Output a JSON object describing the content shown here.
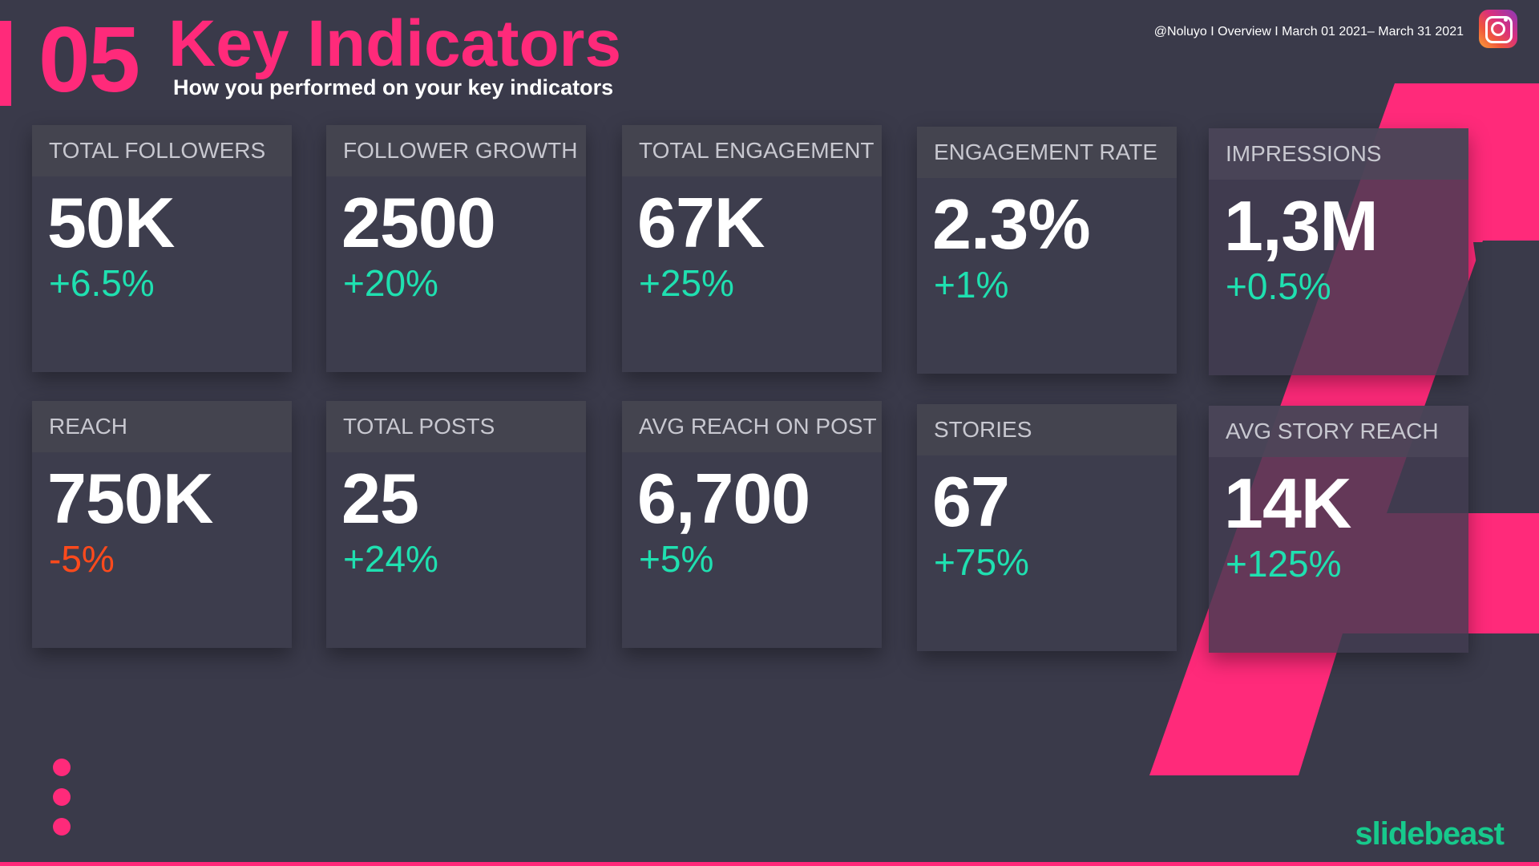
{
  "header": {
    "section_number": "05",
    "title": "Key Indicators",
    "subtitle": "How you performed on your key indicators",
    "meta": "@Noluyo I Overview I March 01 2021– March 31 2021"
  },
  "brand": {
    "name": "slidebeast"
  },
  "colors": {
    "accent": "#ff2a7a",
    "positive": "#1fe0b0",
    "negative": "#ff4a1c",
    "background": "#3a3a4a"
  },
  "icons": {
    "social": "instagram-icon"
  },
  "metrics": [
    {
      "label": "TOTAL FOLLOWERS",
      "value": "50K",
      "change": "+6.5%",
      "trend": "positive"
    },
    {
      "label": "FOLLOWER GROWTH",
      "value": "2500",
      "change": "+20%",
      "trend": "positive"
    },
    {
      "label": "TOTAL ENGAGEMENT",
      "value": "67K",
      "change": "+25%",
      "trend": "positive"
    },
    {
      "label": "ENGAGEMENT RATE",
      "value": "2.3%",
      "change": "+1%",
      "trend": "positive"
    },
    {
      "label": "IMPRESSIONS",
      "value": "1,3M",
      "change": "+0.5%",
      "trend": "positive"
    },
    {
      "label": "REACH",
      "value": "750K",
      "change": "-5%",
      "trend": "negative"
    },
    {
      "label": "TOTAL POSTS",
      "value": "25",
      "change": "+24%",
      "trend": "positive"
    },
    {
      "label": "AVG REACH ON POST",
      "value": "6,700",
      "change": "+5%",
      "trend": "positive"
    },
    {
      "label": "STORIES",
      "value": "67",
      "change": "+75%",
      "trend": "positive"
    },
    {
      "label": "AVG STORY REACH",
      "value": "14K",
      "change": "+125%",
      "trend": "positive"
    }
  ]
}
